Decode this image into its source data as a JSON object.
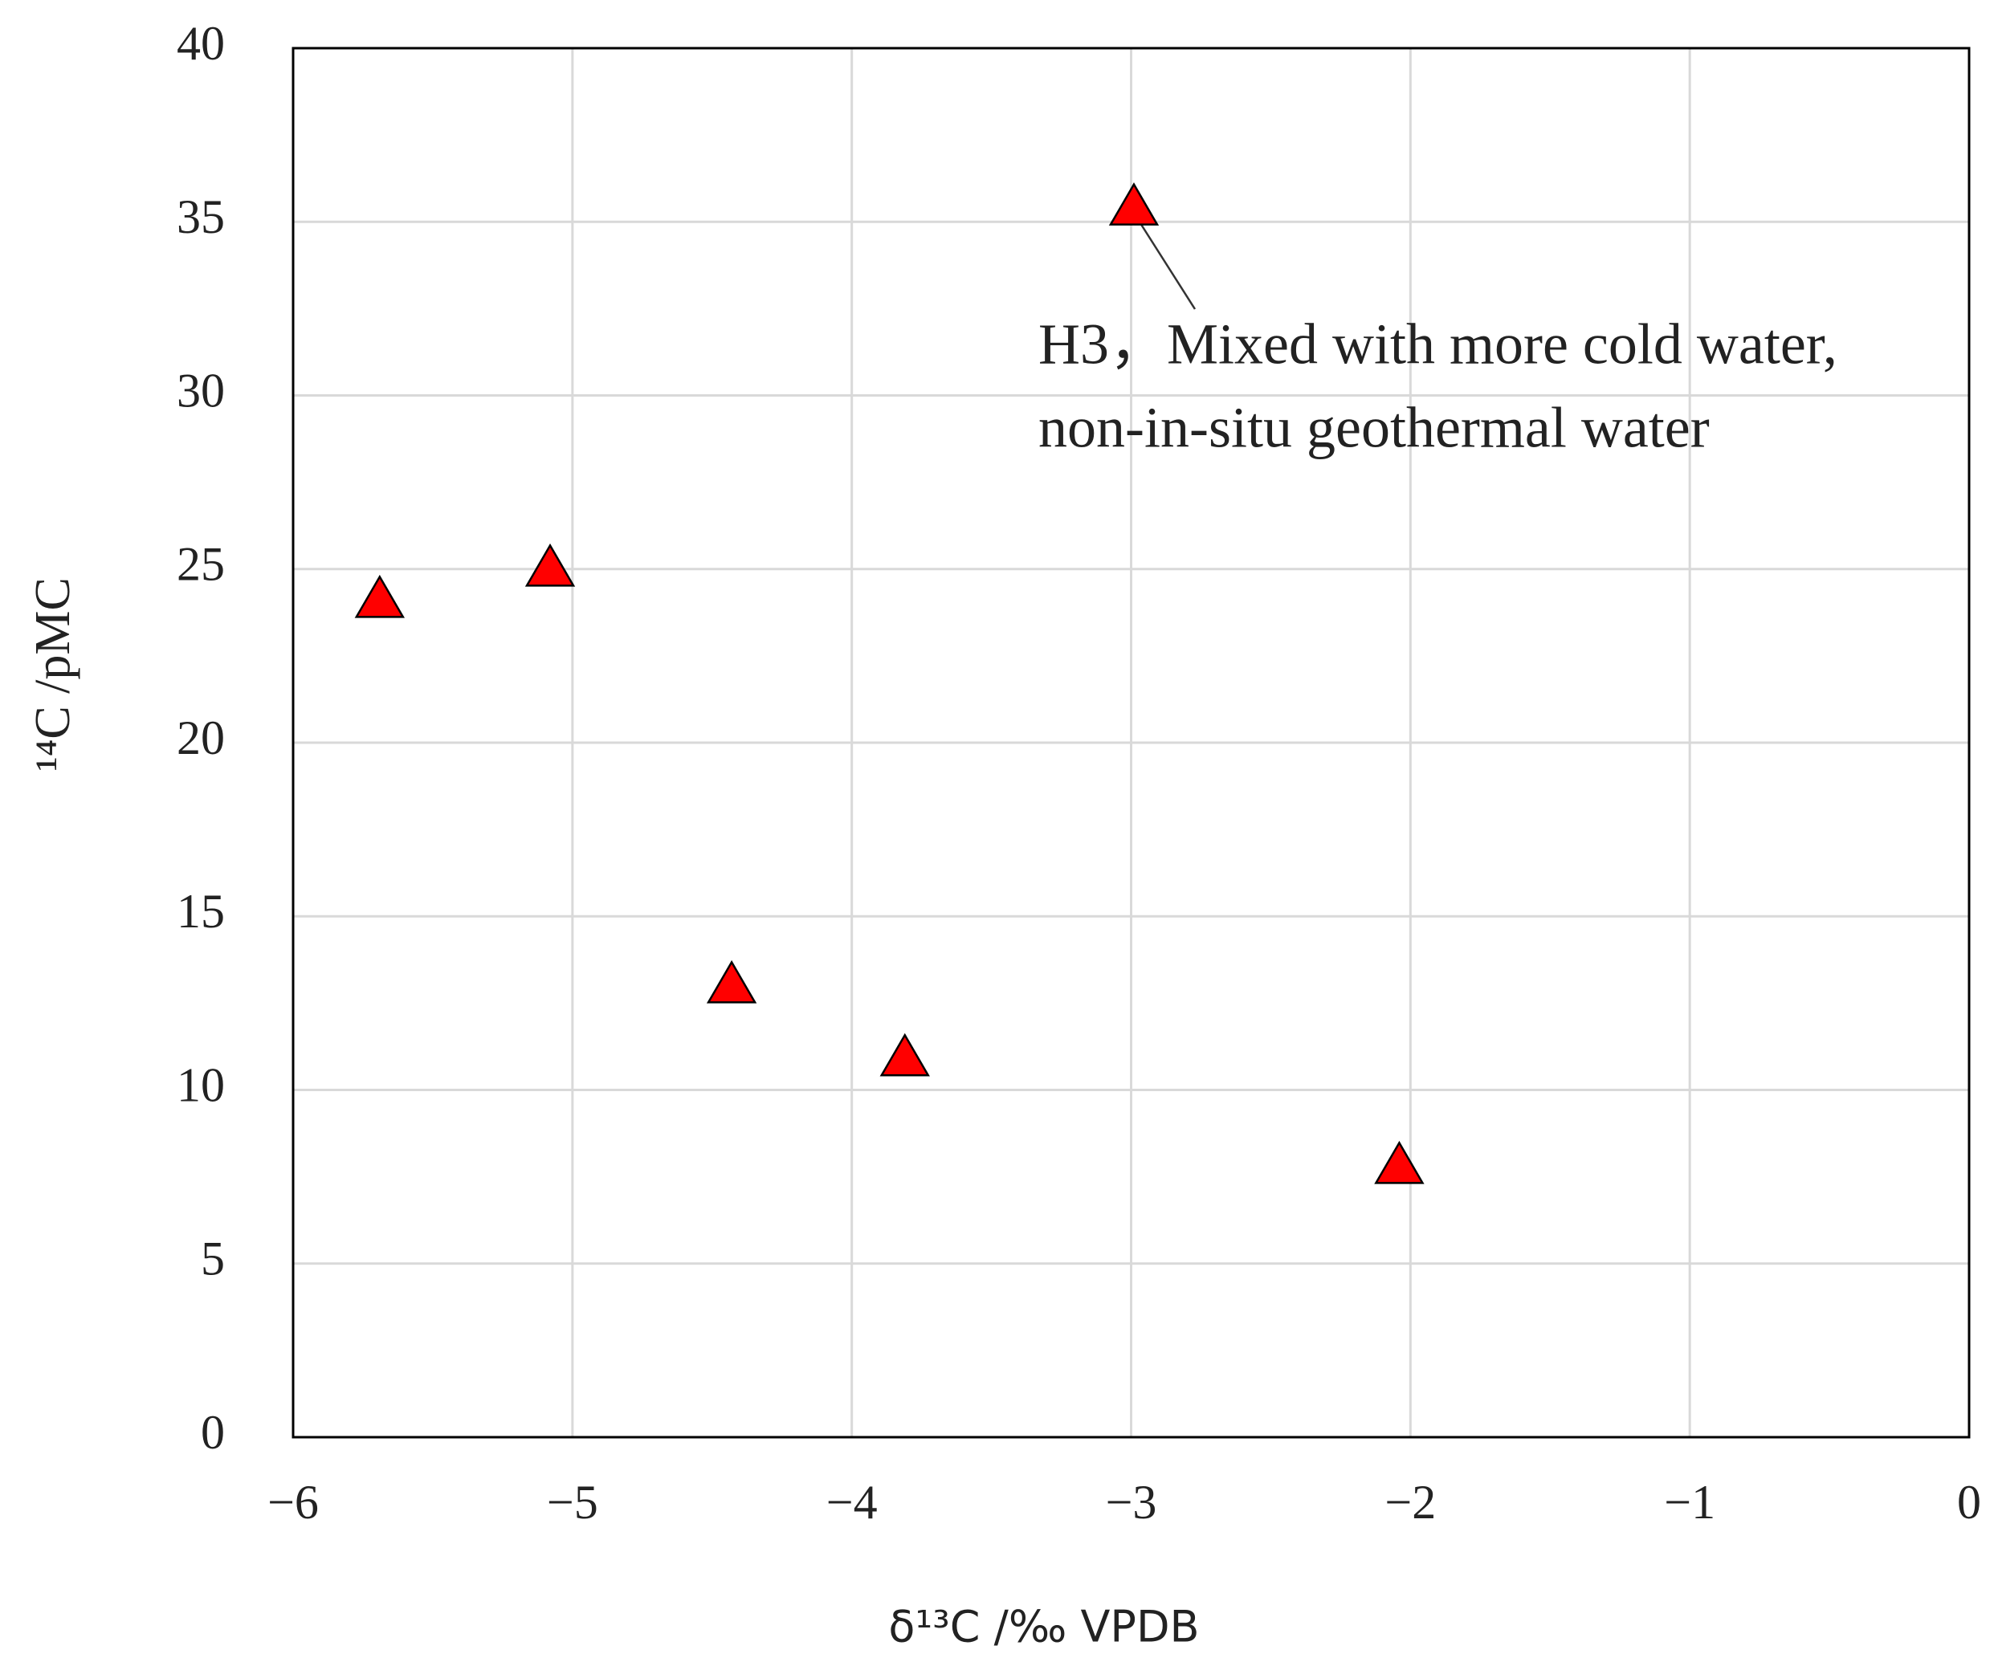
{
  "chart_data": {
    "type": "scatter",
    "xlabel": "δ¹³C /‰ VPDB",
    "ylabel": "¹⁴C /pMC",
    "x": [
      -5.69,
      -5.08,
      -2.99,
      -4.43,
      -3.81,
      -2.04
    ],
    "values": [
      24.2,
      25.1,
      35.5,
      13.1,
      11.0,
      7.9
    ],
    "color": "#ff0000",
    "marker": "triangle",
    "xlim": [
      -6,
      0
    ],
    "ylim": [
      0,
      40
    ],
    "xticks": [
      {
        "value": -6,
        "label": "−6"
      },
      {
        "value": -5,
        "label": "−5"
      },
      {
        "value": -4,
        "label": "−4"
      },
      {
        "value": -3,
        "label": "−3"
      },
      {
        "value": -2,
        "label": "−2"
      },
      {
        "value": -1,
        "label": "−1"
      },
      0
    ],
    "yticks": [
      0,
      5,
      10,
      15,
      20,
      25,
      30,
      35,
      40
    ],
    "grid": true,
    "annotation": [
      "H3，Mixed with more cold water,",
      "non-in-situ geothermal water"
    ]
  }
}
